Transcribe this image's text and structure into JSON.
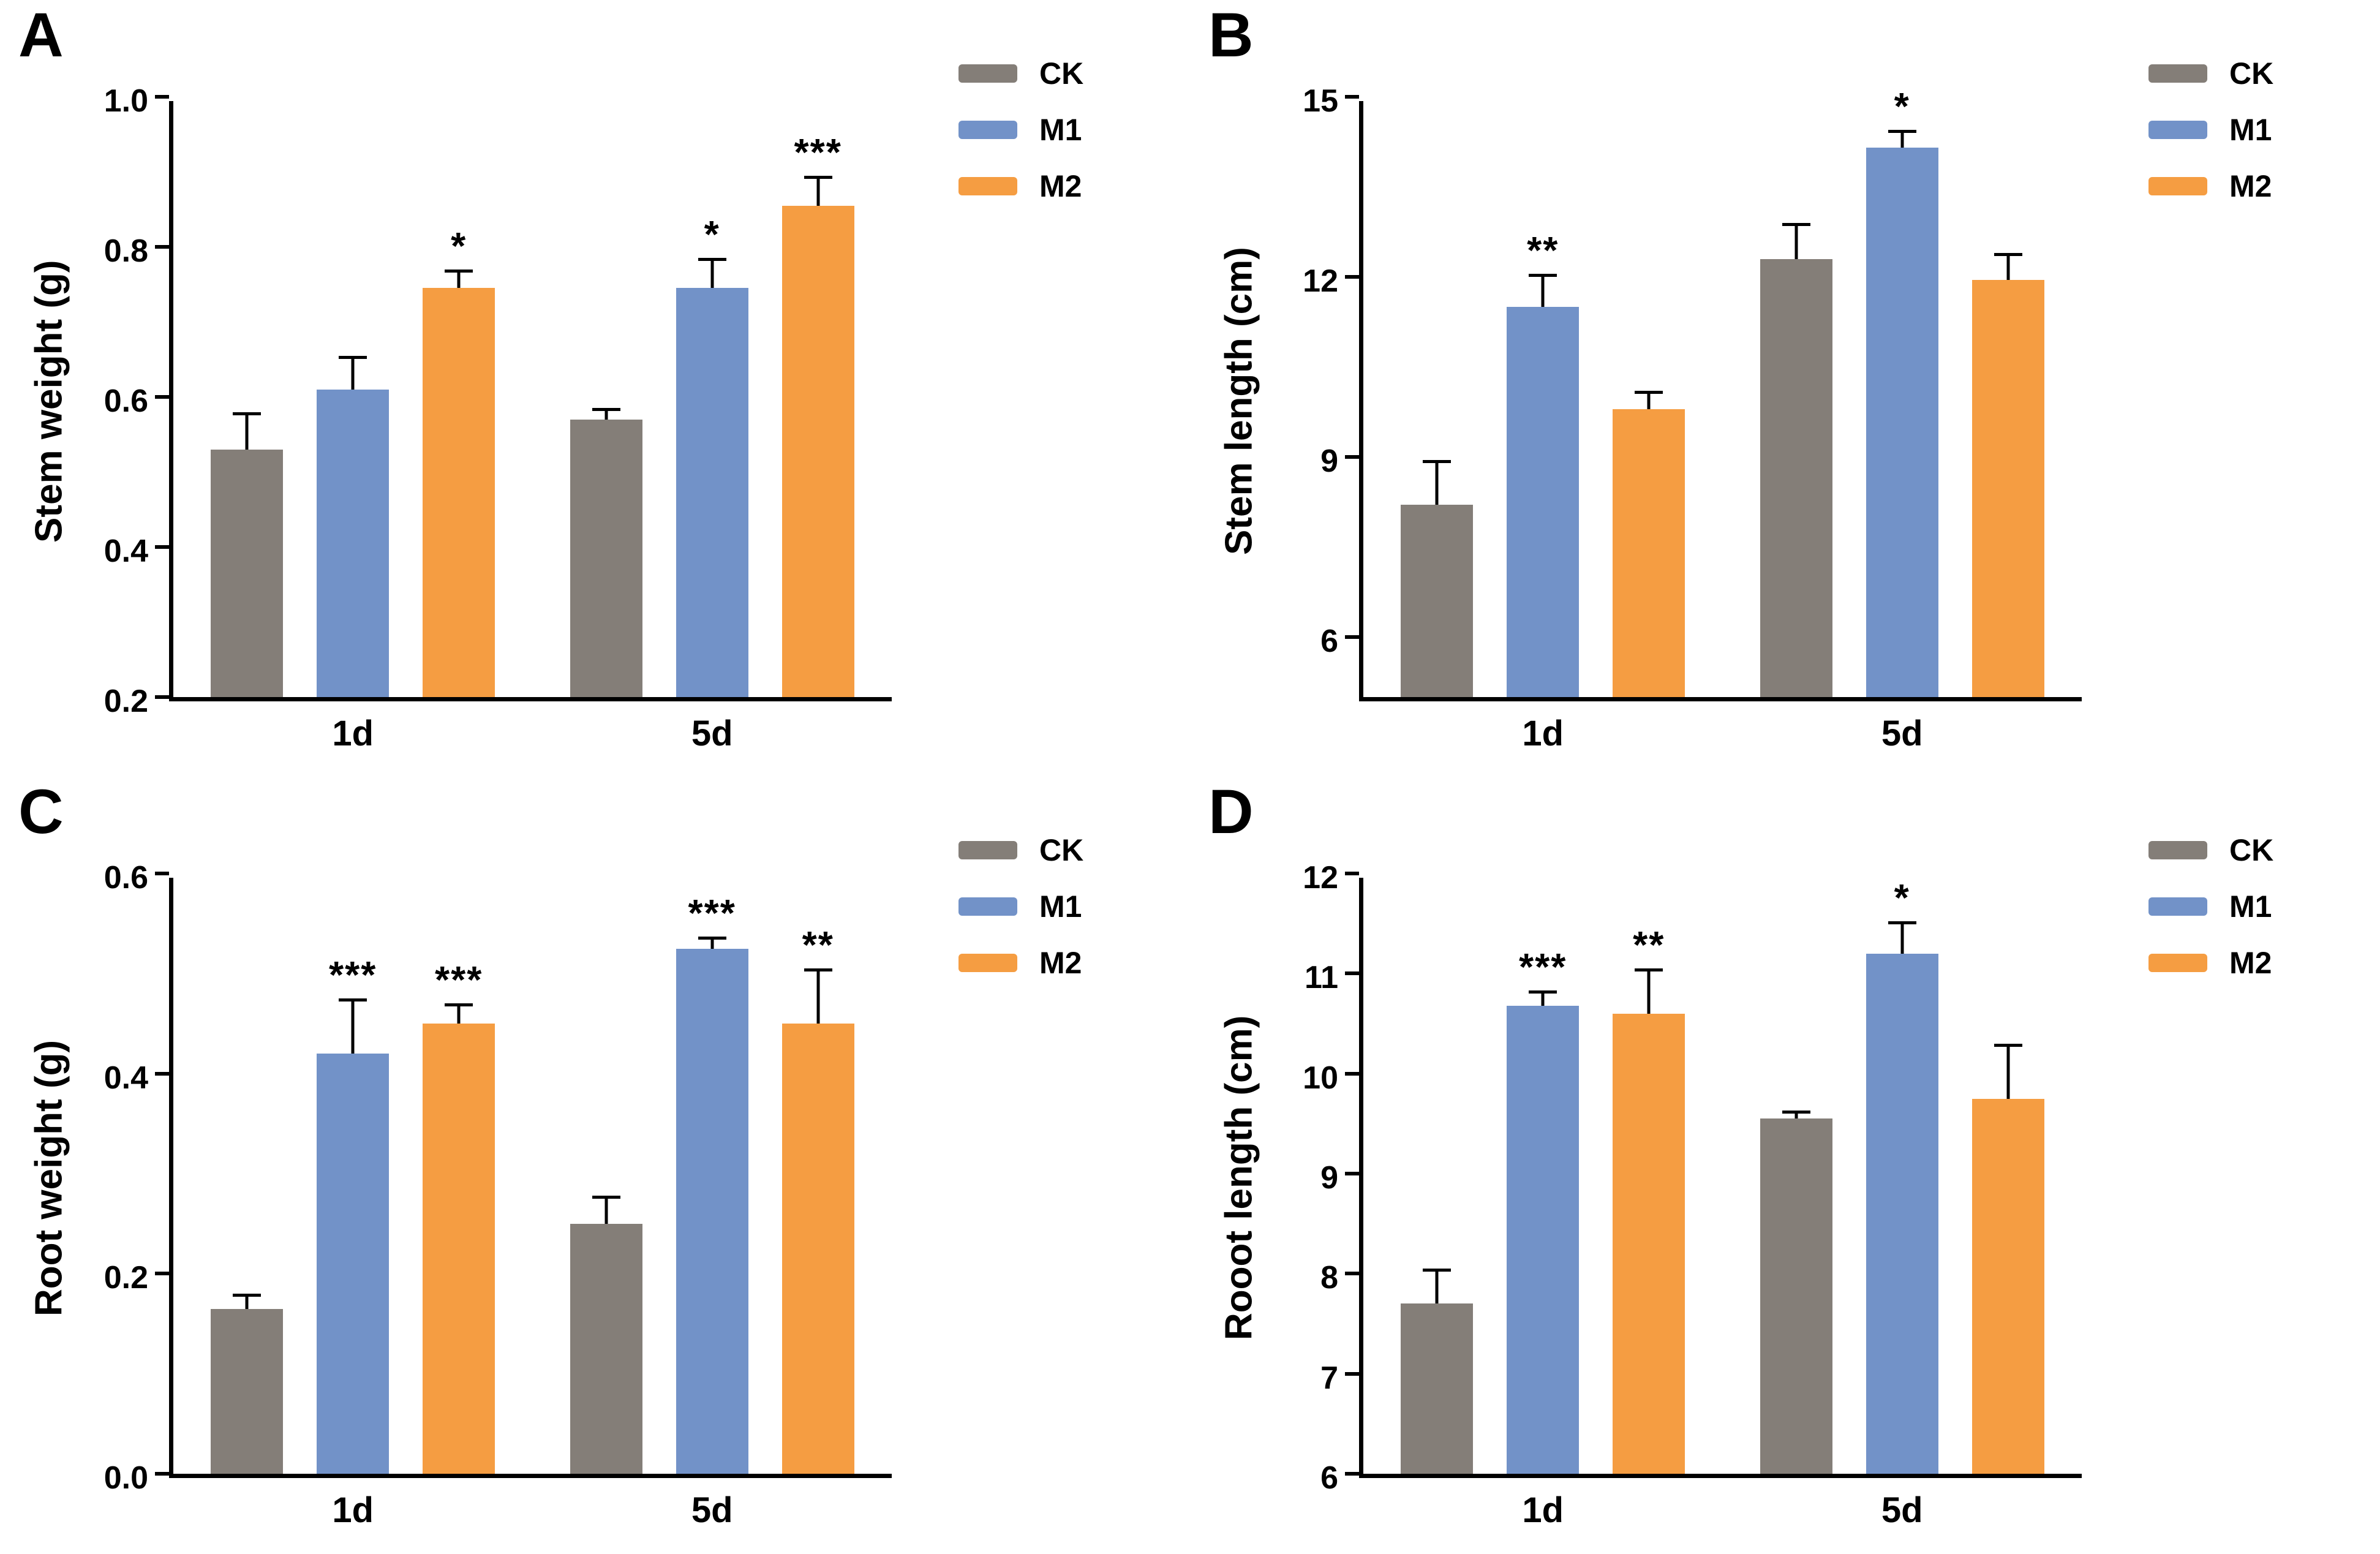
{
  "figure": {
    "background": "#ffffff",
    "series_colors": {
      "CK": "#847e78",
      "M1": "#7292c8",
      "M2": "#f59d42"
    }
  },
  "chart_data": [
    {
      "type": "bar",
      "panel_label": "A",
      "title": "",
      "xlabel": "",
      "ylabel": "Stem weight (g)",
      "ymin": 0.2,
      "ymax": 1.0,
      "yticks": [
        0.2,
        0.4,
        0.6,
        0.8,
        1.0
      ],
      "ytick_labels": [
        "0.2",
        "0.4",
        "0.6",
        "0.8",
        "1.0"
      ],
      "categories": [
        "1d",
        "5d"
      ],
      "grid": false,
      "legend_position": "top-right",
      "series": [
        {
          "name": "CK",
          "color": "#847e78",
          "values": [
            0.53,
            0.57
          ],
          "errors": [
            0.05,
            0.015
          ],
          "significance": [
            "",
            ""
          ]
        },
        {
          "name": "M1",
          "color": "#7292c8",
          "values": [
            0.61,
            0.745
          ],
          "errors": [
            0.045,
            0.04
          ],
          "significance": [
            "",
            "*"
          ]
        },
        {
          "name": "M2",
          "color": "#f59d42",
          "values": [
            0.745,
            0.855
          ],
          "errors": [
            0.025,
            0.04
          ],
          "significance": [
            "*",
            "***"
          ]
        }
      ]
    },
    {
      "type": "bar",
      "panel_label": "B",
      "title": "",
      "xlabel": "",
      "ylabel": "Stem length (cm)",
      "ymin": 5,
      "ymax": 15,
      "yticks": [
        6,
        9,
        12,
        15
      ],
      "ytick_labels": [
        "6",
        "9",
        "12",
        "15"
      ],
      "categories": [
        "1d",
        "5d"
      ],
      "grid": false,
      "legend_position": "top-right",
      "series": [
        {
          "name": "CK",
          "color": "#847e78",
          "values": [
            8.2,
            12.3
          ],
          "errors": [
            0.75,
            0.6
          ],
          "significance": [
            "",
            ""
          ]
        },
        {
          "name": "M1",
          "color": "#7292c8",
          "values": [
            11.5,
            14.15
          ],
          "errors": [
            0.55,
            0.3
          ],
          "significance": [
            "**",
            "*"
          ]
        },
        {
          "name": "M2",
          "color": "#f59d42",
          "values": [
            9.8,
            11.95
          ],
          "errors": [
            0.3,
            0.45
          ],
          "significance": [
            "",
            ""
          ]
        }
      ]
    },
    {
      "type": "bar",
      "panel_label": "C",
      "title": "",
      "xlabel": "",
      "ylabel": "Root weight (g)",
      "ymin": 0,
      "ymax": 0.6,
      "yticks": [
        0,
        0.2,
        0.4,
        0.6
      ],
      "ytick_labels": [
        "0.0",
        "0.2",
        "0.4",
        "0.6"
      ],
      "categories": [
        "1d",
        "5d"
      ],
      "grid": false,
      "legend_position": "top-right",
      "series": [
        {
          "name": "CK",
          "color": "#847e78",
          "values": [
            0.165,
            0.25
          ],
          "errors": [
            0.015,
            0.028
          ],
          "significance": [
            "",
            ""
          ]
        },
        {
          "name": "M1",
          "color": "#7292c8",
          "values": [
            0.42,
            0.525
          ],
          "errors": [
            0.055,
            0.012
          ],
          "significance": [
            "***",
            "***"
          ]
        },
        {
          "name": "M2",
          "color": "#f59d42",
          "values": [
            0.45,
            0.45
          ],
          "errors": [
            0.02,
            0.055
          ],
          "significance": [
            "***",
            "**"
          ]
        }
      ]
    },
    {
      "type": "bar",
      "panel_label": "D",
      "title": "",
      "xlabel": "",
      "ylabel": "Rooot length (cm)",
      "ymin": 6,
      "ymax": 12,
      "yticks": [
        6,
        7,
        8,
        9,
        10,
        11,
        12
      ],
      "ytick_labels": [
        "6",
        "7",
        "8",
        "9",
        "10",
        "11",
        "12"
      ],
      "categories": [
        "1d",
        "5d"
      ],
      "grid": false,
      "legend_position": "top-right",
      "series": [
        {
          "name": "CK",
          "color": "#847e78",
          "values": [
            7.7,
            9.55
          ],
          "errors": [
            0.35,
            0.08
          ],
          "significance": [
            "",
            ""
          ]
        },
        {
          "name": "M1",
          "color": "#7292c8",
          "values": [
            10.68,
            11.2
          ],
          "errors": [
            0.15,
            0.32
          ],
          "significance": [
            "***",
            "*"
          ]
        },
        {
          "name": "M2",
          "color": "#f59d42",
          "values": [
            10.6,
            9.75
          ],
          "errors": [
            0.45,
            0.55
          ],
          "significance": [
            "**",
            ""
          ]
        }
      ]
    }
  ]
}
